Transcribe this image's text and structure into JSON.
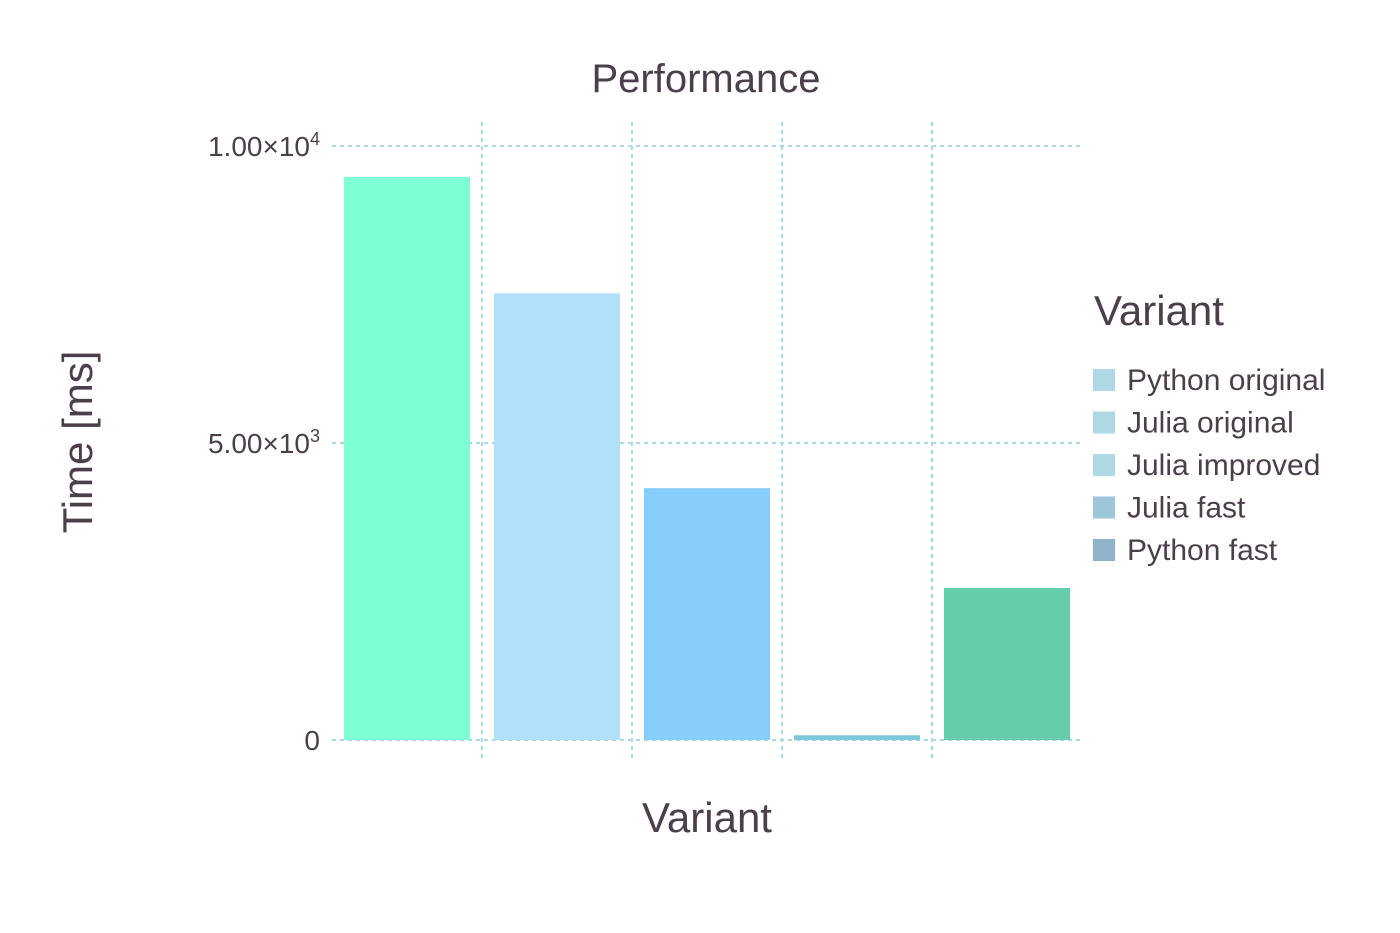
{
  "chart_data": {
    "type": "bar",
    "title": "Performance",
    "xlabel": "Variant",
    "ylabel": "Time [ms]",
    "categories": [
      "Python original",
      "Julia original",
      "Julia improved",
      "Julia fast",
      "Python fast"
    ],
    "values": [
      9480,
      7520,
      4240,
      80,
      2560
    ],
    "ylim": [
      0,
      10000
    ],
    "yticks": [
      0,
      5000,
      10000
    ],
    "ytick_labels": [
      {
        "mantissa": "0",
        "exponent": ""
      },
      {
        "mantissa": "5.00×10",
        "exponent": "3"
      },
      {
        "mantissa": "1.00×10",
        "exponent": "4"
      }
    ],
    "bar_colors": [
      "#7fffd4",
      "#b0e0fa",
      "#87cefa",
      "#7ec8dc",
      "#66cdaa"
    ],
    "grid": true,
    "grid_color": "#add8e6",
    "legend": {
      "title": "Variant",
      "placement": "right",
      "entries": [
        {
          "label": "Python original",
          "swatch": "#add8e6"
        },
        {
          "label": "Julia original",
          "swatch": "#add8e6"
        },
        {
          "label": "Julia improved",
          "swatch": "#add8e6"
        },
        {
          "label": "Julia fast",
          "swatch": "#9ec5d8"
        },
        {
          "label": "Python fast",
          "swatch": "#90b4cc"
        }
      ]
    },
    "text_color": "#4a3f4a"
  }
}
